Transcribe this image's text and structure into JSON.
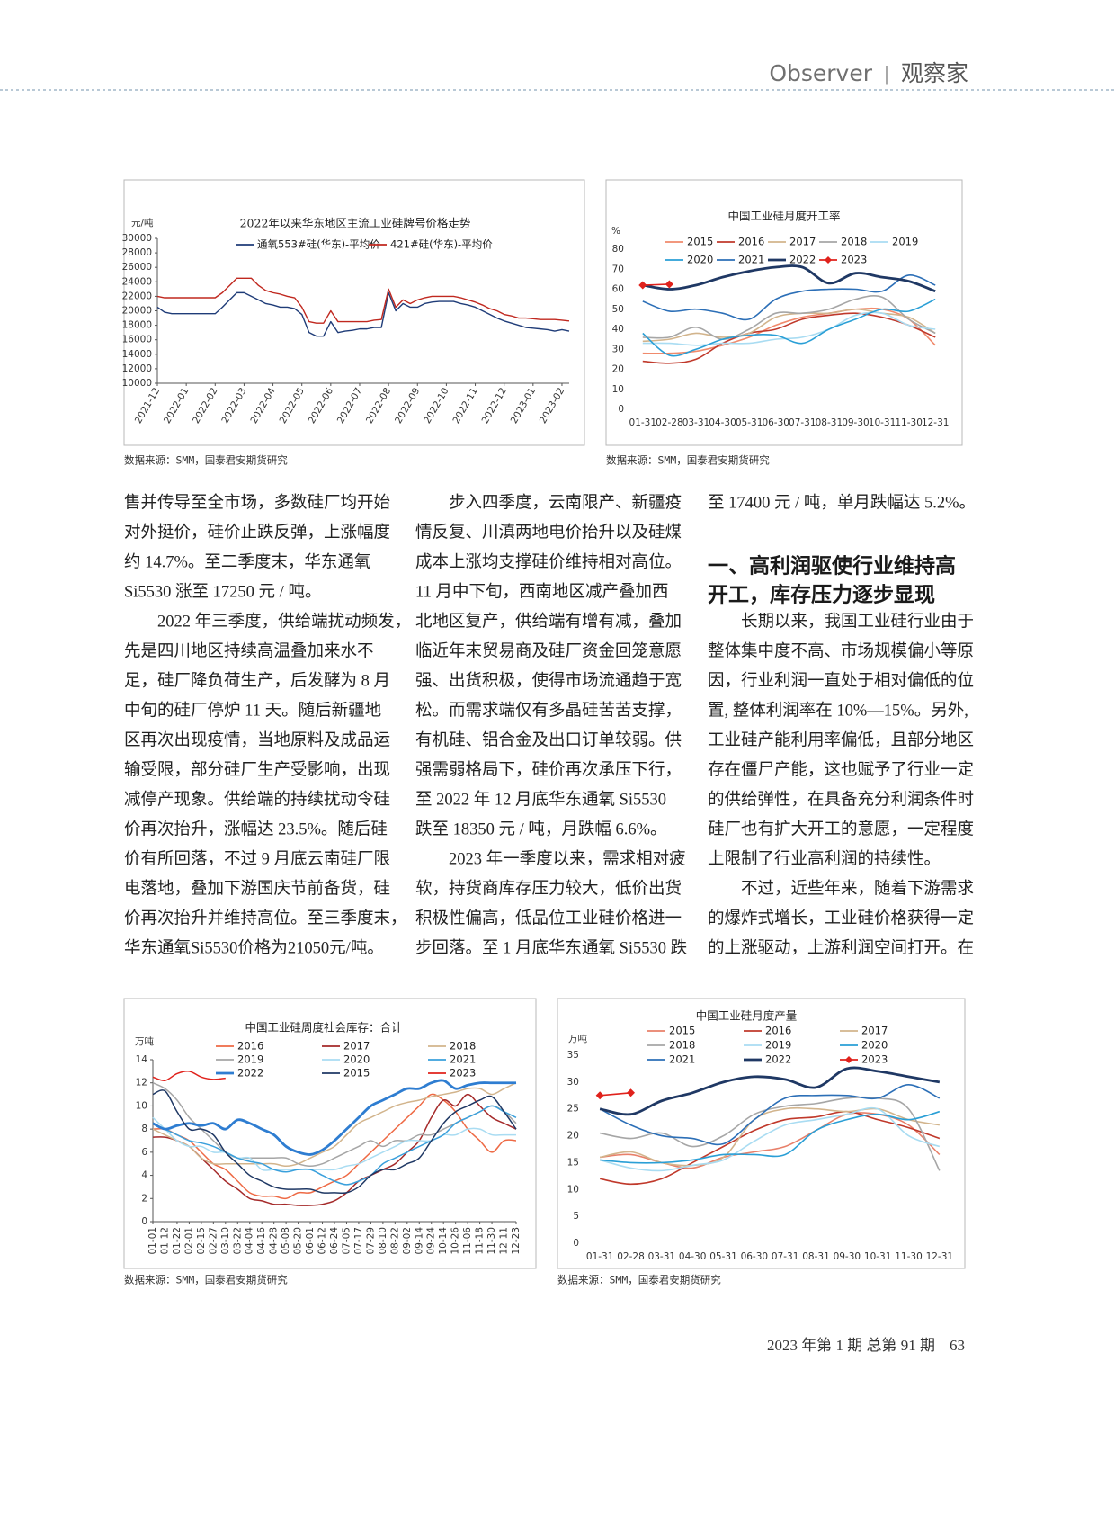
{
  "header": {
    "title": "Observer",
    "separator": "|",
    "subtitle": "观察家"
  },
  "chart_data": [
    {
      "type": "line",
      "title": "2022年以来华东地区主流工业硅牌号价格走势",
      "unit": "元/吨",
      "source": "数据来源：SMM，国泰君安期货研究",
      "categories": [
        "2021-12",
        null,
        null,
        null,
        "2022-01",
        null,
        null,
        null,
        "2022-02",
        null,
        null,
        null,
        "2022-03",
        null,
        null,
        null,
        "2022-04",
        null,
        null,
        null,
        "2022-05",
        null,
        null,
        null,
        "2022-06",
        null,
        null,
        null,
        "2022-07",
        null,
        null,
        null,
        "2022-08",
        null,
        null,
        null,
        "2022-09",
        null,
        null,
        null,
        "2022-10",
        null,
        null,
        null,
        "2022-11",
        null,
        null,
        null,
        "2022-12",
        null,
        null,
        null,
        "2023-01",
        null,
        null,
        null,
        "2023-02",
        null
      ],
      "ylim": [
        10000,
        30000
      ],
      "yticks": [
        10000,
        12000,
        14000,
        16000,
        18000,
        20000,
        22000,
        24000,
        26000,
        28000,
        30000
      ],
      "series": [
        {
          "name": "通氧553#硅(华东)-平均价",
          "color": "#1f3c78",
          "values": [
            20500,
            19800,
            19600,
            19600,
            19600,
            19600,
            19600,
            19600,
            19600,
            20500,
            21500,
            22500,
            22500,
            22000,
            21500,
            21000,
            20800,
            20500,
            20500,
            20300,
            19500,
            17000,
            16500,
            16500,
            18500,
            17000,
            17200,
            17300,
            17500,
            17500,
            17700,
            17700,
            22500,
            20000,
            21000,
            20500,
            20500,
            21000,
            21200,
            21300,
            21300,
            21300,
            21000,
            20800,
            20500,
            20000,
            19500,
            19000,
            18600,
            18300,
            18000,
            17700,
            17600,
            17500,
            17400,
            17200,
            17400,
            17200
          ]
        },
        {
          "name": "421#硅(华东)-平均价",
          "color": "#c0281f",
          "values": [
            22000,
            21800,
            21800,
            21800,
            21800,
            21800,
            21800,
            21800,
            21800,
            22500,
            23500,
            24500,
            24500,
            24500,
            23500,
            22800,
            22500,
            22300,
            22000,
            21800,
            20500,
            18500,
            18300,
            18300,
            20000,
            18500,
            18500,
            18500,
            18500,
            18500,
            18700,
            18800,
            23000,
            20500,
            21500,
            21000,
            21500,
            21800,
            22000,
            22000,
            22000,
            22000,
            21800,
            21500,
            21200,
            20800,
            20300,
            20000,
            19500,
            19300,
            19000,
            19000,
            18900,
            18800,
            18800,
            18800,
            18700,
            18600
          ]
        }
      ]
    },
    {
      "type": "line",
      "title": "中国工业硅月度开工率",
      "unit": "%",
      "source": "数据来源：SMM，国泰君安期货研究",
      "categories": [
        "01-31",
        "02-28",
        "03-31",
        "04-30",
        "05-31",
        "06-30",
        "07-31",
        "08-31",
        "09-30",
        "10-31",
        "11-30",
        "12-31"
      ],
      "ylim": [
        0,
        80
      ],
      "yticks": [
        0,
        10,
        20,
        30,
        40,
        50,
        60,
        70,
        80
      ],
      "series": [
        {
          "name": "2015",
          "color": "#f08a6c",
          "values": [
            28,
            28,
            29,
            32,
            36,
            42,
            46,
            48,
            50,
            50,
            45,
            32
          ]
        },
        {
          "name": "2016",
          "color": "#c0392b",
          "values": [
            24,
            23,
            25,
            33,
            38,
            40,
            45,
            47,
            48,
            46,
            42,
            36
          ]
        },
        {
          "name": "2017",
          "color": "#d2b48c",
          "values": [
            34,
            35,
            38,
            36,
            38,
            46,
            48,
            48,
            50,
            48,
            46,
            38
          ]
        },
        {
          "name": "2018",
          "color": "#a6a6a6",
          "values": [
            36,
            36,
            41,
            35,
            40,
            48,
            48,
            50,
            55,
            56,
            45,
            38
          ]
        },
        {
          "name": "2019",
          "color": "#a9dcf2",
          "values": [
            33,
            33,
            32,
            33,
            33,
            35,
            36,
            40,
            47,
            48,
            42,
            40
          ]
        },
        {
          "name": "2020",
          "color": "#2a9fd6",
          "values": [
            38,
            27,
            30,
            35,
            37,
            37,
            33,
            40,
            45,
            50,
            49,
            55
          ]
        },
        {
          "name": "2021",
          "color": "#2c6fb7",
          "values": [
            54,
            49,
            50,
            48,
            45,
            55,
            59,
            60,
            60,
            59,
            67,
            62
          ]
        },
        {
          "name": "2022",
          "color": "#1f3864",
          "values": [
            62,
            60,
            62,
            66,
            69,
            71,
            71,
            63,
            68,
            66,
            64,
            59
          ]
        },
        {
          "name": "2023",
          "color": "#e0221c",
          "marker": "diamond",
          "values": [
            62,
            62.5,
            null,
            null,
            null,
            null,
            null,
            null,
            null,
            null,
            null,
            null
          ]
        }
      ]
    },
    {
      "type": "line",
      "title": "中国工业硅周度社会库存：合计",
      "unit": "万吨",
      "source": "数据来源：SMM，国泰君安期货研究",
      "categories": [
        "01-01",
        "01-12",
        "01-22",
        "02-01",
        "02-15",
        "02-27",
        "03-10",
        "03-22",
        "04-04",
        "04-16",
        "04-28",
        "05-08",
        "05-20",
        "06-01",
        "06-12",
        "06-24",
        "07-05",
        "07-17",
        "07-29",
        "08-10",
        "08-22",
        "09-02",
        "09-14",
        "09-24",
        "10-14",
        "10-26",
        "11-06",
        "11-18",
        "11-30",
        "12-11",
        "12-23"
      ],
      "ylim": [
        0,
        14
      ],
      "yticks": [
        0,
        2,
        4,
        6,
        8,
        10,
        12,
        14
      ],
      "series": [
        {
          "name": "2016",
          "color": "#ee6a45",
          "values": [
            8,
            8,
            7.5,
            7,
            6,
            5,
            4.5,
            3.5,
            2.5,
            2.2,
            2.2,
            2,
            2.5,
            2.5,
            3,
            3.5,
            4,
            5,
            6,
            7,
            8,
            9,
            10,
            11,
            10.5,
            9.5,
            8,
            7,
            6,
            7,
            7
          ]
        },
        {
          "name": "2017",
          "color": "#a52a2a",
          "values": [
            7.3,
            7.3,
            7,
            6.5,
            5.5,
            4.5,
            3.5,
            2.8,
            2,
            1.8,
            1.5,
            1.5,
            1.4,
            1.4,
            1.5,
            1.8,
            2.5,
            3.5,
            4,
            4.5,
            5,
            6,
            7,
            9,
            10.5,
            10,
            11,
            10,
            9,
            8.5,
            8
          ]
        },
        {
          "name": "2018",
          "color": "#d2b48c",
          "values": [
            8,
            7.5,
            7,
            6.5,
            5.5,
            5,
            5,
            5,
            5,
            5,
            5,
            4.8,
            5,
            5.5,
            6,
            6.5,
            7.5,
            8.5,
            9,
            9.5,
            10,
            10.3,
            10.5,
            10.8,
            11,
            11.2,
            11.5,
            11.5,
            11,
            11.5,
            12
          ]
        },
        {
          "name": "2019",
          "color": "#a6a6a6",
          "values": [
            12,
            11.5,
            10.5,
            9,
            8,
            7,
            6,
            5.5,
            5.5,
            5.5,
            5.5,
            5.5,
            5,
            4.8,
            5,
            5.5,
            6,
            6.5,
            7,
            6.5,
            7,
            7,
            7.5,
            7.5,
            8,
            8.5,
            9,
            9.5,
            10,
            9.5,
            8.5
          ]
        },
        {
          "name": "2020",
          "color": "#a9dcf2",
          "values": [
            9,
            8,
            7,
            6.5,
            6.5,
            6,
            6,
            5.5,
            5.5,
            4.5,
            4.5,
            4.5,
            4.5,
            4.5,
            4.5,
            4.5,
            4.8,
            5,
            5.5,
            6,
            6.5,
            7,
            7,
            7,
            7.5,
            7.5,
            8,
            8,
            7.5,
            7.5,
            7.5
          ]
        },
        {
          "name": "2021",
          "color": "#3aa0dc",
          "values": [
            8.5,
            8,
            7.5,
            7,
            6.8,
            6.5,
            6,
            5.5,
            5.2,
            5,
            4.5,
            4.3,
            4.5,
            4.5,
            4,
            3.5,
            3.2,
            3.5,
            4,
            5,
            5.5,
            6,
            6.5,
            7,
            7.5,
            8.5,
            9,
            9.5,
            10,
            9.5,
            9
          ]
        },
        {
          "name": "2022",
          "color": "#2e7dd1",
          "values": [
            8.5,
            8,
            8.3,
            8.5,
            8.3,
            8.5,
            8,
            8.8,
            8.5,
            8,
            7.5,
            6.5,
            6,
            5.8,
            6.2,
            7,
            8,
            9,
            10,
            10.5,
            11,
            11.5,
            11.5,
            12,
            12.2,
            11.5,
            11.8,
            12,
            12,
            12,
            12
          ]
        },
        {
          "name": "2015",
          "color": "#1f3864",
          "values": [
            11,
            11.3,
            9.5,
            8,
            8,
            7.5,
            6,
            5,
            4,
            3.5,
            3,
            2.8,
            2.8,
            2.8,
            2.5,
            2.5,
            2.5,
            3,
            4,
            4.5,
            4.5,
            5,
            5.5,
            7,
            8.5,
            9.5,
            10,
            10.5,
            10.8,
            9.5,
            8
          ]
        },
        {
          "name": "2023",
          "color": "#e0221c",
          "values": [
            12.5,
            12.2,
            12.8,
            13,
            12.5,
            12.3,
            12.4,
            null,
            null,
            null,
            null,
            null,
            null,
            null,
            null,
            null,
            null,
            null,
            null,
            null,
            null,
            null,
            null,
            null,
            null,
            null,
            null,
            null,
            null,
            null,
            null
          ]
        }
      ]
    },
    {
      "type": "line",
      "title": "中国工业硅月度产量",
      "unit": "万吨",
      "source": "数据来源：SMM，国泰君安期货研究",
      "categories": [
        "01-31",
        "02-28",
        "03-31",
        "04-30",
        "05-31",
        "06-30",
        "07-31",
        "08-31",
        "09-30",
        "10-31",
        "11-30",
        "12-31"
      ],
      "ylim": [
        0,
        35
      ],
      "yticks": [
        0,
        5,
        10,
        15,
        20,
        25,
        30,
        35
      ],
      "series": [
        {
          "name": "2015",
          "color": "#e8806a",
          "values": [
            16,
            16.5,
            15,
            14,
            16,
            17,
            18,
            21,
            24,
            24,
            22,
            16.5
          ]
        },
        {
          "name": "2016",
          "color": "#c0392b",
          "values": [
            12,
            11,
            12,
            15,
            18,
            21,
            23,
            23.5,
            24.5,
            23,
            21.5,
            19.5
          ]
        },
        {
          "name": "2017",
          "color": "#d2b48c",
          "values": [
            16,
            17,
            15,
            14.5,
            16,
            23,
            25,
            25,
            24.5,
            25,
            23,
            22
          ]
        },
        {
          "name": "2018",
          "color": "#a6a6a6",
          "values": [
            20.5,
            19.5,
            20.5,
            18,
            20,
            24,
            25.5,
            26,
            27,
            27,
            25,
            13.5
          ]
        },
        {
          "name": "2019",
          "color": "#a9dcf2",
          "values": [
            15.5,
            14,
            13.5,
            14.5,
            15.5,
            19,
            22,
            23,
            24,
            25,
            20,
            18
          ]
        },
        {
          "name": "2020",
          "color": "#2a9fd6",
          "values": [
            15.5,
            15,
            15,
            15.5,
            16.5,
            16.5,
            16.5,
            21,
            23,
            24,
            23,
            24.5
          ]
        },
        {
          "name": "2021",
          "color": "#2c6fb7",
          "values": [
            25,
            22,
            20,
            19.5,
            18.5,
            23,
            27,
            27.5,
            27.5,
            27,
            29.5,
            27
          ]
        },
        {
          "name": "2022",
          "color": "#1f3864",
          "values": [
            25,
            24,
            26.5,
            28,
            30,
            31,
            30.5,
            29,
            32.5,
            32,
            31,
            30
          ]
        },
        {
          "name": "2023",
          "color": "#e0221c",
          "marker": "diamond",
          "values": [
            27.5,
            28,
            null,
            null,
            null,
            null,
            null,
            null,
            null,
            null,
            null,
            null
          ]
        }
      ]
    }
  ],
  "article": {
    "columns": [
      [
        "售并传导至全市场，多数硅厂均开始",
        "对外挺价，硅价止跌反弹，上涨幅度",
        "约 14.7%。至二季度末，华东通氧",
        "Si5530 涨至 17250 元 / 吨。",
        "2022 年三季度，供给端扰动频发，",
        "先是四川地区持续高温叠加来水不",
        "足，硅厂降负荷生产，后发酵为 8 月",
        "中旬的硅厂停炉 11 天。随后新疆地",
        "区再次出现疫情，当地原料及成品运",
        "输受限，部分硅厂生产受影响，出现",
        "减停产现象。供给端的持续扰动令硅",
        "价再次抬升，涨幅达 23.5%。随后硅",
        "价有所回落，不过 9 月底云南硅厂限",
        "电落地，叠加下游国庆节前备货，硅",
        "价再次抬升并维持高位。至三季度末，",
        "华东通氧Si5530价格为21050元/吨。"
      ],
      [
        "步入四季度，云南限产、新疆疫",
        "情反复、川滇两地电价抬升以及硅煤",
        "成本上涨均支撑硅价维持相对高位。",
        "11 月中下旬，西南地区减产叠加西",
        "北地区复产，供给端有增有减，叠加",
        "临近年末贸易商及硅厂资金回笼意愿",
        "强、出货积极，使得市场流通趋于宽",
        "松。而需求端仅有多晶硅苦苦支撑，",
        "有机硅、铝合金及出口订单较弱。供",
        "强需弱格局下，硅价再次承压下行，",
        "至 2022 年 12 月底华东通氧 Si5530",
        "跌至 18350 元 / 吨，月跌幅 6.6%。",
        "2023 年一季度以来，需求相对疲",
        "软，持货商库存压力较大，低价出货",
        "积极性偏高，低品位工业硅价格进一",
        "步回落。至 1 月底华东通氧 Si5530 跌"
      ],
      [
        "至 17400 元 / 吨，单月跌幅达 5.2%。",
        "长期以来，我国工业硅行业由于",
        "整体集中度不高、市场规模偏小等原",
        "因，行业利润一直处于相对偏低的位",
        "置, 整体利润率在 10%—15%。另外,",
        "工业硅产能利用率偏低，且部分地区",
        "存在僵尸产能，这也赋予了行业一定",
        "的供给弹性，在具备充分利润条件时",
        "硅厂也有扩大开工的意愿，一定程度",
        "上限制了行业高利润的持续性。",
        "不过，近些年来，随着下游需求",
        "的爆炸式增长，工业硅价格获得一定",
        "的上涨驱动，上游利润空间打开。在"
      ]
    ],
    "heading": [
      "一、高利润驱使行业维持高",
      "开工，库存压力逐步显现"
    ]
  },
  "footer": {
    "issue": "2023 年第 1 期  总第 91 期",
    "page": 63
  }
}
